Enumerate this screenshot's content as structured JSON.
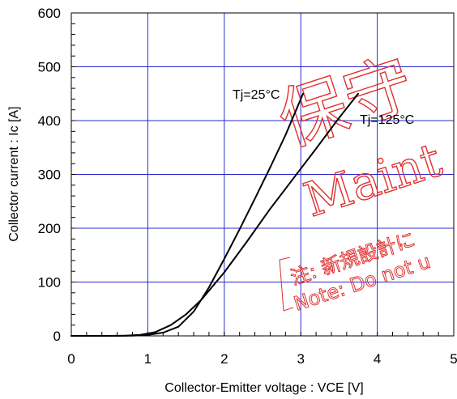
{
  "chart_data": {
    "type": "line",
    "title": "",
    "xlabel": "Collector-Emitter voltage : VCE [V]",
    "ylabel": "Collector current : Ic [A]",
    "xlim": [
      0,
      5
    ],
    "ylim": [
      0,
      600
    ],
    "xticks": [
      0,
      1,
      2,
      3,
      4,
      5
    ],
    "yticks": [
      0,
      100,
      200,
      300,
      400,
      500,
      600
    ],
    "grid": true,
    "series": [
      {
        "name": "Tj=25°C",
        "points": [
          [
            0,
            0
          ],
          [
            0.5,
            0
          ],
          [
            0.8,
            0.5
          ],
          [
            1.0,
            2
          ],
          [
            1.2,
            6
          ],
          [
            1.4,
            17
          ],
          [
            1.6,
            45
          ],
          [
            1.8,
            90
          ],
          [
            2.0,
            143
          ],
          [
            2.2,
            198
          ],
          [
            2.4,
            255
          ],
          [
            2.6,
            313
          ],
          [
            2.8,
            373
          ],
          [
            3.0,
            440
          ],
          [
            3.03,
            450
          ]
        ]
      },
      {
        "name": "Tj=125°C",
        "points": [
          [
            0,
            0
          ],
          [
            0.5,
            0
          ],
          [
            0.7,
            0.5
          ],
          [
            0.9,
            2
          ],
          [
            1.1,
            7
          ],
          [
            1.3,
            20
          ],
          [
            1.5,
            40
          ],
          [
            1.7,
            67
          ],
          [
            2.0,
            118
          ],
          [
            2.3,
            176
          ],
          [
            2.6,
            236
          ],
          [
            2.9,
            292
          ],
          [
            3.2,
            348
          ],
          [
            3.5,
            405
          ],
          [
            3.75,
            450
          ]
        ]
      }
    ],
    "annotations": [
      "Tj=25°C",
      "Tj=125°C"
    ],
    "colors": {
      "grid": "#2a2acc",
      "line": "#000000",
      "watermark": "#e03030"
    }
  },
  "watermark": {
    "big_text": "保守",
    "latin_text": "Maint",
    "note_jp": "注: 新規設計に",
    "note_en": "Note: Do not u"
  }
}
